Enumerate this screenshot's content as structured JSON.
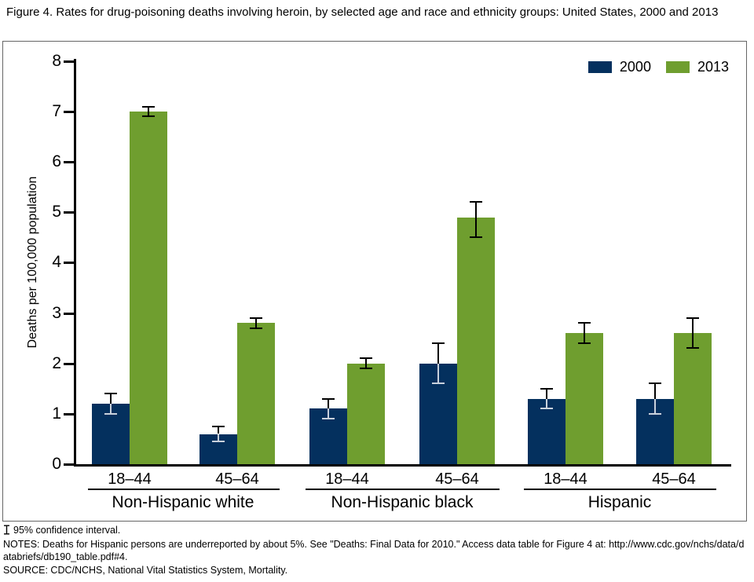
{
  "footer": {
    "ci_note": "95% confidence interval.",
    "notes": "NOTES: Deaths for Hispanic persons are underreported by about 5%. See \"Deaths: Final Data for 2010.\" Access data table for Figure 4 at: http://www.cdc.gov/nchs/data/databriefs/db190_table.pdf#4.",
    "source": "SOURCE: CDC/NCHS, National Vital Statistics System, Mortality."
  },
  "chart_data": {
    "type": "bar",
    "title": "Figure 4. Rates for drug-poisoning deaths involving heroin, by selected age and race and ethnicity groups: United States, 2000 and 2013",
    "ylabel": "Deaths per 100,000 population",
    "xlabel": "",
    "ylim": [
      0,
      8
    ],
    "ytick_step": 1,
    "grid": false,
    "legend_position": "top-right",
    "error_bar_meaning": "95% confidence interval",
    "categories": [
      "18–44",
      "45–64",
      "18–44",
      "45–64",
      "18–44",
      "45–64"
    ],
    "category_groups": [
      {
        "label": "Non-Hispanic white",
        "span": [
          0,
          1
        ]
      },
      {
        "label": "Non-Hispanic black",
        "span": [
          2,
          3
        ]
      },
      {
        "label": "Hispanic",
        "span": [
          4,
          5
        ]
      }
    ],
    "series": [
      {
        "name": "2000",
        "color": "#04305E",
        "values": [
          1.2,
          0.6,
          1.1,
          2.0,
          1.3,
          1.3
        ],
        "ci": [
          [
            1.0,
            1.4
          ],
          [
            0.45,
            0.75
          ],
          [
            0.9,
            1.3
          ],
          [
            1.6,
            2.4
          ],
          [
            1.1,
            1.5
          ],
          [
            1.0,
            1.6
          ]
        ]
      },
      {
        "name": "2013",
        "color": "#6F9E2F",
        "values": [
          7.0,
          2.8,
          2.0,
          4.9,
          2.6,
          2.6
        ],
        "ci": [
          [
            6.9,
            7.1
          ],
          [
            2.7,
            2.9
          ],
          [
            1.9,
            2.1
          ],
          [
            4.5,
            5.2
          ],
          [
            2.4,
            2.8
          ],
          [
            2.3,
            2.9
          ]
        ]
      }
    ]
  }
}
